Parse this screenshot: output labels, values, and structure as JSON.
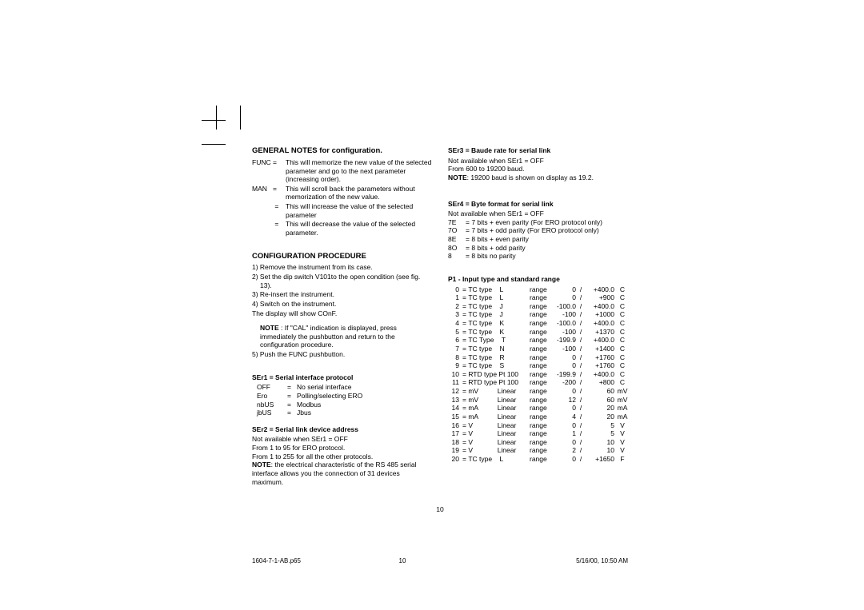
{
  "general_notes": {
    "title": "GENERAL NOTES for configuration.",
    "items": [
      {
        "key": "FUNC =",
        "val": "This will memorize the new value of the selected parameter and go to the next parameter (increasing order)."
      },
      {
        "key": "MAN   =",
        "val": "This will scroll back the parameters without memorization of the new value."
      },
      {
        "key": "            =",
        "val": "This will increase the value of the selected parameter"
      },
      {
        "key": "            =",
        "val": "This will decrease the value of the selected parameter."
      }
    ]
  },
  "config_proc": {
    "title": "CONFIGURATION PROCEDURE",
    "steps": [
      "1) Remove the instrument from its case.",
      "2) Set the dip switch V101to the open condition (see fig. 13).",
      "3) Re-insert the instrument.",
      "4) Switch on the instrument.",
      "The display will show COnF."
    ],
    "note_label": "NOTE",
    "note_text": " : If \"CAL\" indication is displayed, press immediately the        pushbutton and return to the configuration procedure.",
    "step5": "5) Push the FUNC pushbutton."
  },
  "ser1": {
    "title": "SEr1 = Serial interface protocol",
    "rows": [
      {
        "k": "OFF",
        "v": "No serial interface"
      },
      {
        "k": "Ero",
        "v": "Polling/selecting ERO"
      },
      {
        "k": "nbUS",
        "v": "Modbus"
      },
      {
        "k": "jbUS",
        "v": "Jbus"
      }
    ]
  },
  "ser2": {
    "title": "SEr2 = Serial link device address",
    "l1": "Not available when SEr1 = OFF",
    "l2": "From 1 to 95 for ERO protocol.",
    "l3": "From 1 to 255 for all the other protocols.",
    "note_label": "NOTE",
    "note_text": ": the electrical characteristic of the RS 485 serial interface allows you the connection of 31 devices maximum."
  },
  "ser3": {
    "title": "SEr3 = Baude rate for serial link",
    "l1": "Not available when SEr1 = OFF",
    "l2": "From 600 to 19200 baud.",
    "note_label": "NOTE",
    "note_text": ": 19200 baud is shown on display as 19.2."
  },
  "ser4": {
    "title": "SEr4 = Byte format for serial link",
    "l1": "Not available when SEr1 = OFF",
    "rows": [
      {
        "k": "7E",
        "v": "= 7 bits + even parity (For ERO protocol only)"
      },
      {
        "k": "7O",
        "v": "= 7 bits + odd parity (For ERO protocol only)"
      },
      {
        "k": "8E",
        "v": "= 8 bits + even parity"
      },
      {
        "k": "8O",
        "v": "= 8 bits + odd parity"
      },
      {
        "k": "8",
        "v": "= 8 bits no parity"
      }
    ]
  },
  "p1": {
    "title": "P1 - Input type and standard range",
    "rows": [
      {
        "i": "0",
        "t": "= TC type    L",
        "r": "range",
        "lo": "0",
        "hi": "+400.0",
        "u": "C"
      },
      {
        "i": "1",
        "t": "= TC type    L",
        "r": "range",
        "lo": "0",
        "hi": "+900",
        "u": "C"
      },
      {
        "i": "2",
        "t": "= TC type    J",
        "r": "range",
        "lo": "-100.0",
        "hi": "+400.0",
        "u": "C"
      },
      {
        "i": "3",
        "t": "= TC type    J",
        "r": "range",
        "lo": "-100",
        "hi": "+1000",
        "u": "C"
      },
      {
        "i": "4",
        "t": "= TC type    K",
        "r": "range",
        "lo": "-100.0",
        "hi": "+400.0",
        "u": "C"
      },
      {
        "i": "5",
        "t": "= TC type    K",
        "r": "range",
        "lo": "-100",
        "hi": "+1370",
        "u": "C"
      },
      {
        "i": "6",
        "t": "= TC Type    T",
        "r": "range",
        "lo": "-199.9",
        "hi": "+400.0",
        "u": "C"
      },
      {
        "i": "7",
        "t": "= TC type    N",
        "r": "range",
        "lo": "-100",
        "hi": "+1400",
        "u": "C"
      },
      {
        "i": "8",
        "t": "= TC type    R",
        "r": "range",
        "lo": "0",
        "hi": "+1760",
        "u": "C"
      },
      {
        "i": "9",
        "t": "= TC type    S",
        "r": "range",
        "lo": "0",
        "hi": "+1760",
        "u": "C"
      },
      {
        "i": "10",
        "t": "= RTD type Pt 100",
        "r": "range",
        "lo": "-199.9",
        "hi": "+400.0",
        "u": "C"
      },
      {
        "i": "11",
        "t": "= RTD type Pt 100",
        "r": "range",
        "lo": "-200",
        "hi": "+800",
        "u": "C"
      },
      {
        "i": "12",
        "t": "= mV          Linear",
        "r": "range",
        "lo": "0",
        "hi": "60",
        "u": "mV"
      },
      {
        "i": "13",
        "t": "= mV          Linear",
        "r": "range",
        "lo": "12",
        "hi": "60",
        "u": "mV"
      },
      {
        "i": "14",
        "t": "= mA          Linear",
        "r": "range",
        "lo": "0",
        "hi": "20",
        "u": "mA"
      },
      {
        "i": "15",
        "t": "= mA          Linear",
        "r": "range",
        "lo": "4",
        "hi": "20",
        "u": "mA"
      },
      {
        "i": "16",
        "t": "= V             Linear",
        "r": "range",
        "lo": "0",
        "hi": "5",
        "u": "V"
      },
      {
        "i": "17",
        "t": "= V             Linear",
        "r": "range",
        "lo": "1",
        "hi": "5",
        "u": "V"
      },
      {
        "i": "18",
        "t": "= V             Linear",
        "r": "range",
        "lo": "0",
        "hi": "10",
        "u": "V"
      },
      {
        "i": "19",
        "t": "= V             Linear",
        "r": "range",
        "lo": "2",
        "hi": "10",
        "u": "V"
      },
      {
        "i": "20",
        "t": "= TC type    L",
        "r": "range",
        "lo": "0",
        "hi": "+1650",
        "u": "F"
      }
    ]
  },
  "page_number": "10",
  "footer": {
    "file": "1604-7-1-AB.p65",
    "page": "10",
    "datetime": "5/16/00, 10:50 AM"
  }
}
